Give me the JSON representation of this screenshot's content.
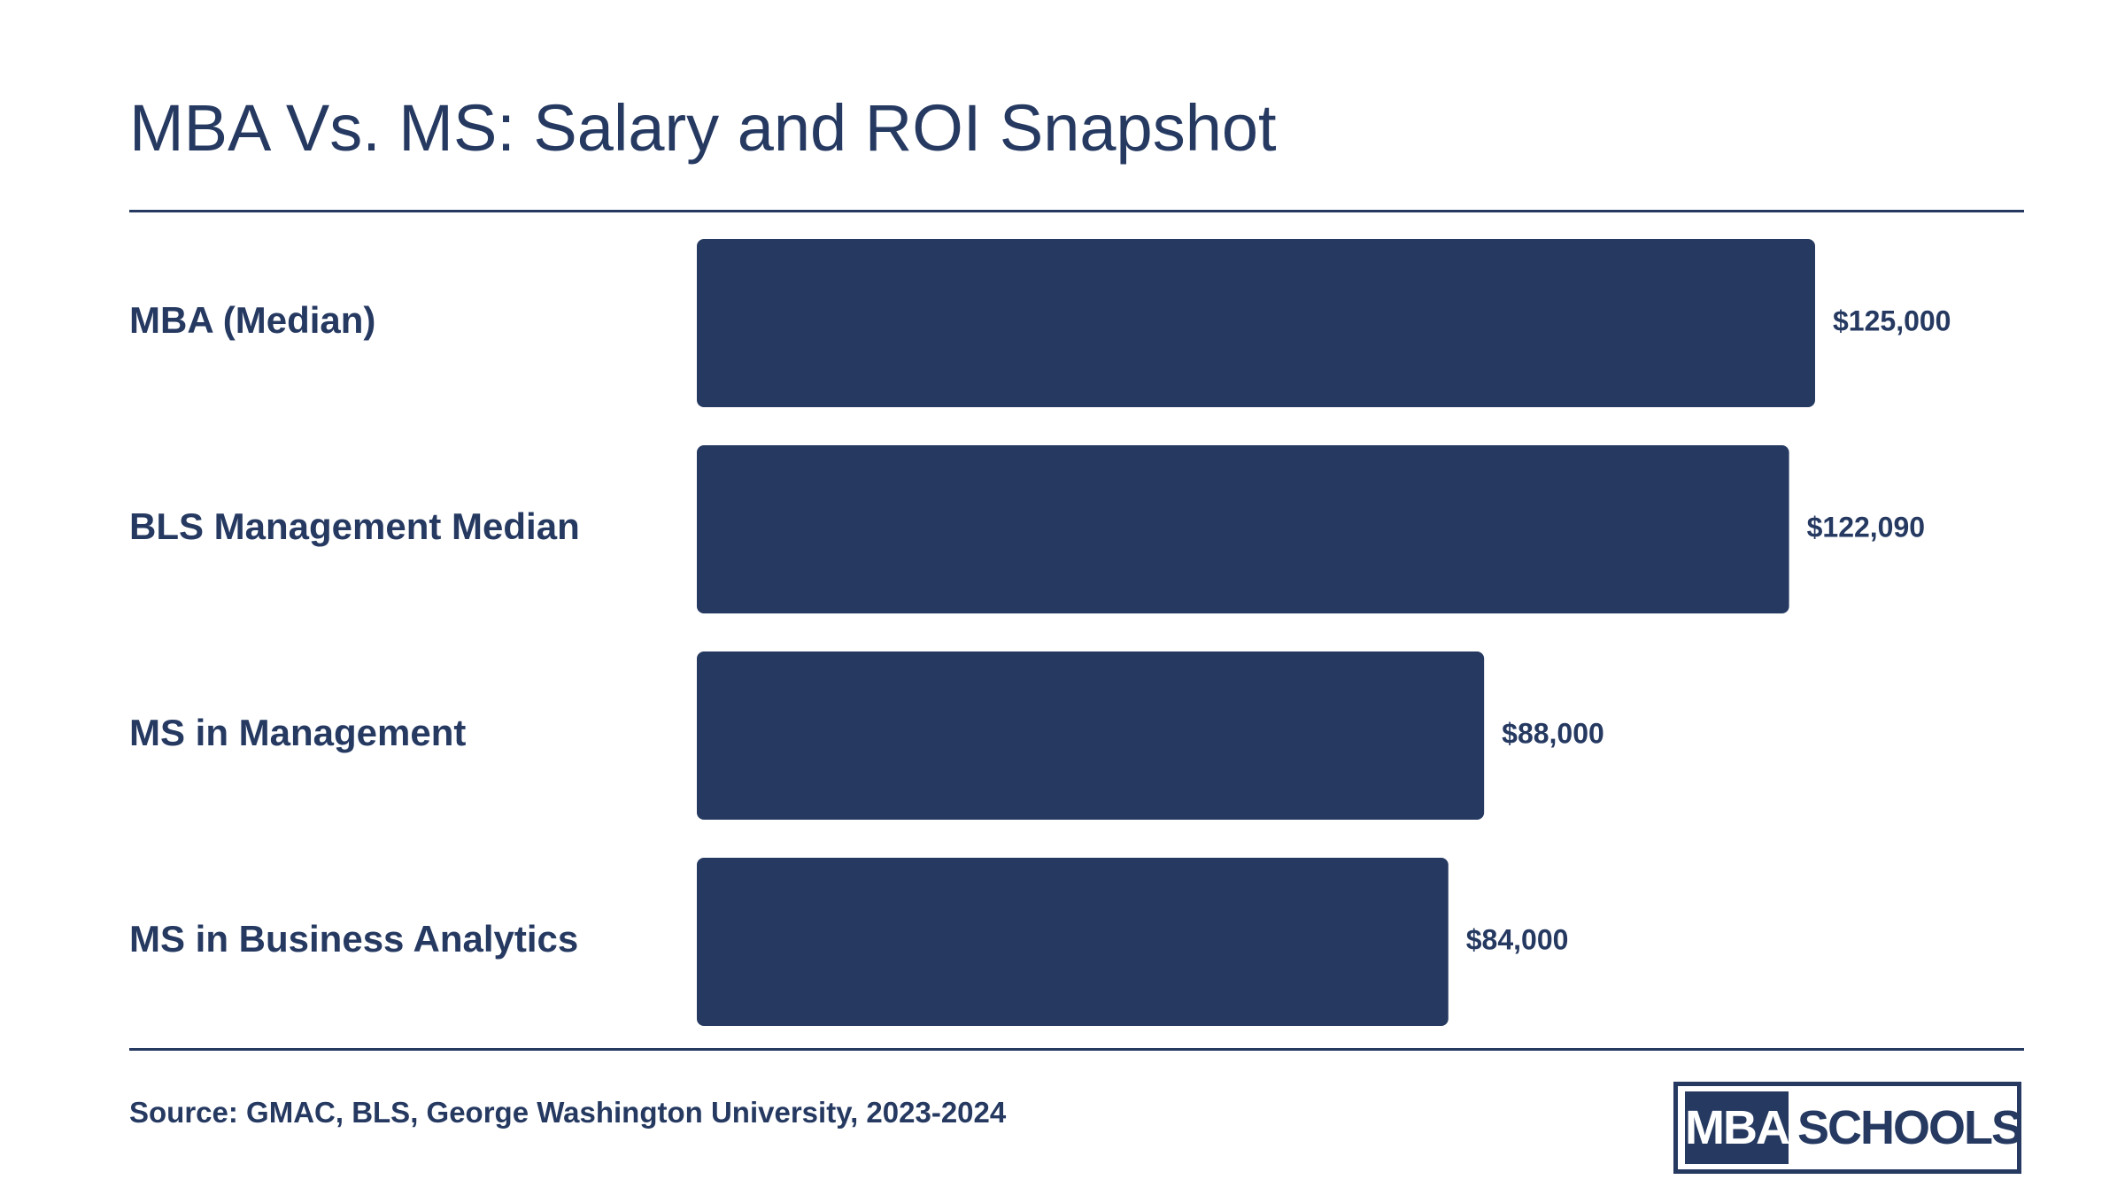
{
  "header": {
    "title": "MBA Vs. MS: Salary and ROI Snapshot"
  },
  "footer": {
    "source": "Source: GMAC, BLS, George Washington University, 2023-2024"
  },
  "logo": {
    "left_text": "MBA",
    "right_text": "SCHOOLS"
  },
  "colors": {
    "bar": "#253961",
    "text": "#253961",
    "background": "#ffffff"
  },
  "chart_data": {
    "type": "bar",
    "orientation": "horizontal",
    "title": "MBA Vs. MS: Salary and ROI Snapshot",
    "categories": [
      "MBA (Median)",
      "BLS Management Median",
      "MS in Management",
      "MS in Business Analytics"
    ],
    "values": [
      125000,
      122090,
      88000,
      84000
    ],
    "value_labels": [
      "$125,000",
      "$122,090",
      "$88,000",
      "$84,000"
    ],
    "xlabel": "",
    "ylabel": "",
    "xlim": [
      0,
      125000
    ],
    "grid": false,
    "legend": "none"
  }
}
